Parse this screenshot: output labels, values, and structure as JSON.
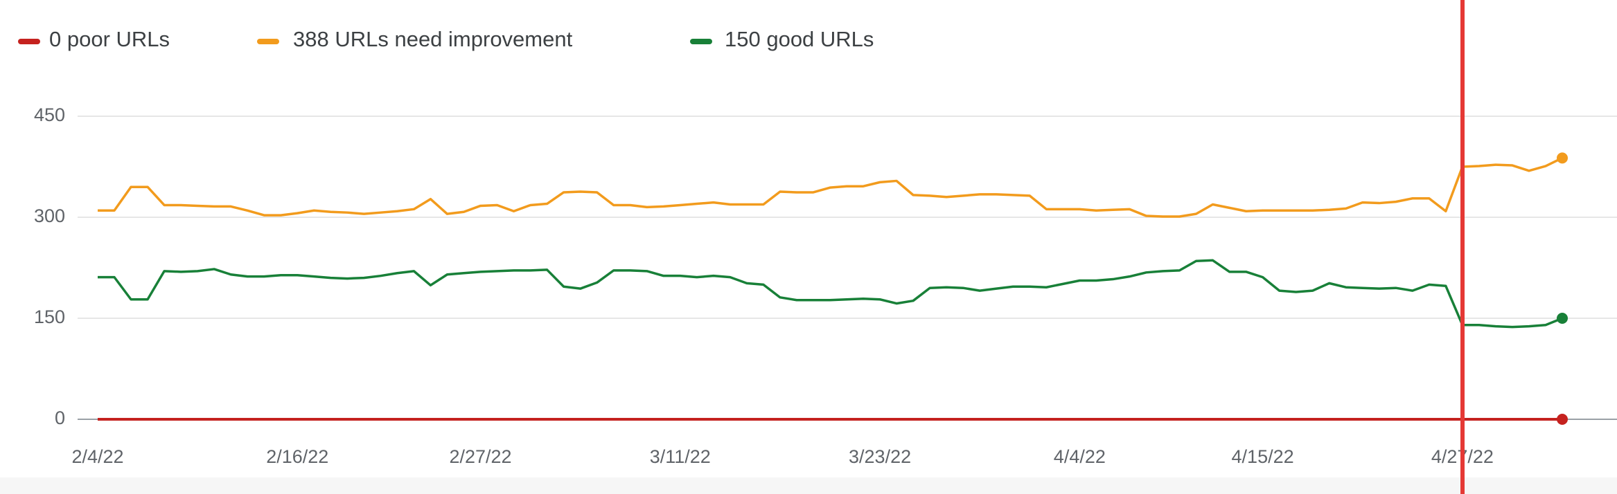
{
  "chart_data": {
    "type": "line",
    "categories": [
      "2/4/22",
      null,
      null,
      null,
      null,
      null,
      null,
      null,
      null,
      null,
      null,
      null,
      "2/16/22",
      null,
      null,
      null,
      null,
      null,
      null,
      null,
      null,
      null,
      null,
      "2/27/22",
      null,
      null,
      null,
      null,
      null,
      null,
      null,
      null,
      null,
      null,
      null,
      "3/11/22",
      null,
      null,
      null,
      null,
      null,
      null,
      null,
      null,
      null,
      null,
      null,
      "3/23/22",
      null,
      null,
      null,
      null,
      null,
      null,
      null,
      null,
      null,
      null,
      null,
      "4/4/22",
      null,
      null,
      null,
      null,
      null,
      null,
      null,
      null,
      null,
      null,
      "4/15/22",
      null,
      null,
      null,
      null,
      null,
      null,
      null,
      null,
      null,
      null,
      null,
      "4/27/22",
      null,
      null,
      null,
      null,
      null,
      null
    ],
    "series": [
      {
        "name": "0 poor URLs",
        "color": "#c5221f",
        "values": [
          0,
          0,
          0,
          0,
          0,
          0,
          0,
          0,
          0,
          0,
          0,
          0,
          0,
          0,
          0,
          0,
          0,
          0,
          0,
          0,
          0,
          0,
          0,
          0,
          0,
          0,
          0,
          0,
          0,
          0,
          0,
          0,
          0,
          0,
          0,
          0,
          0,
          0,
          0,
          0,
          0,
          0,
          0,
          0,
          0,
          0,
          0,
          0,
          0,
          0,
          0,
          0,
          0,
          0,
          0,
          0,
          0,
          0,
          0,
          0,
          0,
          0,
          0,
          0,
          0,
          0,
          0,
          0,
          0,
          0,
          0,
          0,
          0,
          0,
          0,
          0,
          0,
          0,
          0,
          0,
          0,
          0,
          0,
          0,
          0,
          0,
          0,
          0,
          0
        ]
      },
      {
        "name": "388 URLs need improvement",
        "color": "#f29b1d",
        "values": [
          310,
          310,
          345,
          345,
          318,
          318,
          317,
          316,
          316,
          310,
          303,
          303,
          306,
          310,
          308,
          307,
          305,
          307,
          309,
          312,
          327,
          305,
          308,
          317,
          318,
          309,
          318,
          320,
          337,
          338,
          337,
          318,
          318,
          315,
          316,
          318,
          320,
          322,
          319,
          319,
          319,
          338,
          337,
          337,
          344,
          346,
          346,
          352,
          354,
          333,
          332,
          330,
          332,
          334,
          334,
          333,
          332,
          312,
          312,
          312,
          310,
          311,
          312,
          302,
          301,
          301,
          305,
          319,
          314,
          309,
          310,
          310,
          310,
          310,
          311,
          313,
          322,
          321,
          323,
          328,
          328,
          309,
          375,
          376,
          378,
          377,
          369,
          376,
          388
        ]
      },
      {
        "name": "150 good URLs",
        "color": "#188038",
        "values": [
          211,
          211,
          178,
          178,
          220,
          219,
          220,
          223,
          215,
          212,
          212,
          214,
          214,
          212,
          210,
          209,
          210,
          213,
          217,
          220,
          199,
          215,
          217,
          219,
          220,
          221,
          221,
          222,
          197,
          194,
          203,
          221,
          221,
          220,
          213,
          213,
          211,
          213,
          211,
          202,
          200,
          181,
          177,
          177,
          177,
          178,
          179,
          178,
          172,
          176,
          195,
          196,
          195,
          191,
          194,
          197,
          197,
          196,
          201,
          206,
          206,
          208,
          212,
          218,
          220,
          221,
          235,
          236,
          219,
          219,
          211,
          191,
          189,
          191,
          202,
          196,
          195,
          194,
          195,
          191,
          200,
          198,
          140,
          140,
          138,
          137,
          138,
          140,
          150
        ]
      }
    ],
    "ylim": [
      0,
      450
    ],
    "yticks": [
      0,
      150,
      300,
      450
    ],
    "grid": true,
    "legend": "top-left"
  }
}
